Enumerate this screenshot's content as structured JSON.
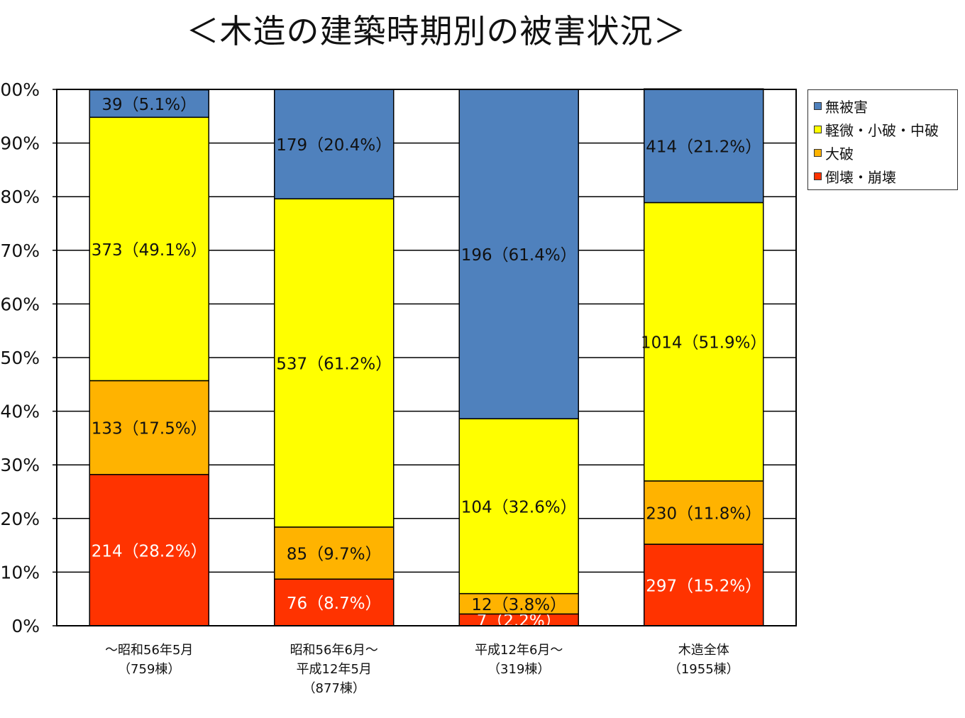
{
  "title": "＜木造の建築時期別の被害状況＞",
  "chart_data": {
    "type": "bar",
    "stacked": true,
    "ylim": [
      0,
      100
    ],
    "y_ticks": [
      "0%",
      "10%",
      "20%",
      "30%",
      "40%",
      "50%",
      "60%",
      "70%",
      "80%",
      "90%",
      "100%"
    ],
    "grid": true,
    "legend_position": "right",
    "categories": [
      [
        "～昭和56年5月",
        "（759棟）"
      ],
      [
        "昭和56年6月～",
        "平成12年5月",
        "（877棟）"
      ],
      [
        "平成12年6月～",
        "（319棟）"
      ],
      [
        "木造全体",
        "（1955棟）"
      ]
    ],
    "series": [
      {
        "name": "倒壊・崩壊",
        "color": "#ff3300",
        "label_color": "#ffffff",
        "values": [
          28.2,
          8.7,
          2.2,
          15.2
        ],
        "labels": [
          "214（28.2%）",
          "76（8.7%）",
          "7（2.2%）",
          "297（15.2%）"
        ]
      },
      {
        "name": "大破",
        "color": "#ffb300",
        "label_color": "#111111",
        "values": [
          17.5,
          9.7,
          3.8,
          11.8
        ],
        "labels": [
          "133（17.5%）",
          "85（9.7%）",
          "12（3.8%）",
          "230（11.8%）"
        ]
      },
      {
        "name": "軽微・小破・中破",
        "color": "#ffff00",
        "label_color": "#111111",
        "values": [
          49.1,
          61.2,
          32.6,
          51.9
        ],
        "labels": [
          "373（49.1%）",
          "537（61.2%）",
          "104（32.6%）",
          "1014（51.9%）"
        ]
      },
      {
        "name": "無被害",
        "color": "#4f81bd",
        "label_color": "#111111",
        "values": [
          5.1,
          20.4,
          61.4,
          21.2
        ],
        "labels": [
          "39（5.1%）",
          "179（20.4%）",
          "196（61.4%）",
          "414（21.2%）"
        ]
      }
    ],
    "legend_order": [
      "無被害",
      "軽微・小破・中破",
      "大破",
      "倒壊・崩壊"
    ]
  }
}
